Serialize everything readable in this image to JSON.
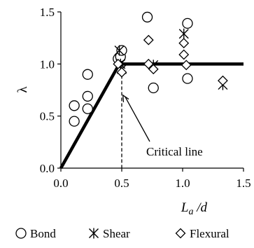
{
  "chart_data": {
    "type": "scatter",
    "xlabel_main": "L",
    "xlabel_sub": "a",
    "xlabel_tail": " /d",
    "ylabel": "λ",
    "xlim": [
      0,
      1.5
    ],
    "ylim": [
      0,
      1.5
    ],
    "x_ticks": [
      0.0,
      0.5,
      1.0,
      1.5
    ],
    "y_ticks": [
      0.0,
      0.5,
      1.0,
      1.5
    ],
    "x_tick_labels": [
      "0.0",
      "0.5",
      "1.0",
      "1.5"
    ],
    "y_tick_labels": [
      "0.0",
      "0.5",
      "1.0",
      "1.5"
    ],
    "grid": false,
    "legend_position": "bottom",
    "fit_line": {
      "points": [
        [
          0,
          0
        ],
        [
          0.48,
          1.0
        ],
        [
          1.5,
          1.0
        ]
      ]
    },
    "critical_line": {
      "x": 0.5,
      "y_range": [
        0,
        1.0
      ]
    },
    "annotation": {
      "text": "Critical line",
      "arrow_target": [
        0.51,
        0.7
      ]
    },
    "series": [
      {
        "name": "Bond",
        "marker": "circle",
        "points": [
          [
            0.11,
            0.6
          ],
          [
            0.11,
            0.45
          ],
          [
            0.22,
            0.9
          ],
          [
            0.22,
            0.69
          ],
          [
            0.22,
            0.57
          ],
          [
            0.47,
            1.05
          ],
          [
            0.49,
            1.07
          ],
          [
            0.5,
            1.13
          ],
          [
            0.71,
            1.45
          ],
          [
            0.76,
            0.77
          ],
          [
            1.04,
            1.39
          ],
          [
            1.04,
            0.86
          ]
        ]
      },
      {
        "name": "Shear",
        "marker": "asterisk",
        "points": [
          [
            0.48,
            1.13
          ],
          [
            0.49,
            1.0
          ],
          [
            0.5,
            0.95
          ],
          [
            0.76,
            0.99
          ],
          [
            1.01,
            1.29
          ],
          [
            1.33,
            0.8
          ]
        ]
      },
      {
        "name": "Flexural",
        "marker": "diamond",
        "points": [
          [
            0.47,
            1.0
          ],
          [
            0.5,
            0.92
          ],
          [
            0.72,
            1.23
          ],
          [
            0.72,
            1.0
          ],
          [
            0.76,
            0.95
          ],
          [
            1.01,
            1.2
          ],
          [
            1.01,
            1.09
          ],
          [
            1.03,
            0.99
          ],
          [
            1.33,
            0.84
          ]
        ]
      }
    ]
  }
}
